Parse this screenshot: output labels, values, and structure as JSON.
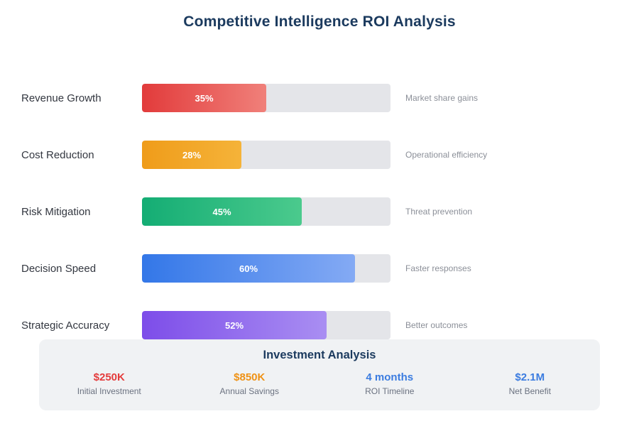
{
  "title": "Competitive Intelligence ROI Analysis",
  "chart_data": {
    "type": "bar",
    "orientation": "horizontal",
    "title": "Competitive Intelligence ROI Analysis",
    "xlim": [
      0,
      70
    ],
    "track_color": "#e4e5e9",
    "rows": [
      {
        "category": "Revenue Growth",
        "value": 35,
        "value_label": "35%",
        "annotation": "Market share gains",
        "color_from": "#e23b3b",
        "color_to": "#f0807a"
      },
      {
        "category": "Cost Reduction",
        "value": 28,
        "value_label": "28%",
        "annotation": "Operational efficiency",
        "color_from": "#ef9c1a",
        "color_to": "#f5b339"
      },
      {
        "category": "Risk Mitigation",
        "value": 45,
        "value_label": "45%",
        "annotation": "Threat prevention",
        "color_from": "#14ad74",
        "color_to": "#4bca8d"
      },
      {
        "category": "Decision Speed",
        "value": 60,
        "value_label": "60%",
        "annotation": "Faster responses",
        "color_from": "#3377e8",
        "color_to": "#84aaf4"
      },
      {
        "category": "Strategic Accuracy",
        "value": 52,
        "value_label": "52%",
        "annotation": "Better outcomes",
        "color_from": "#7d4de9",
        "color_to": "#a98ef2"
      }
    ]
  },
  "summary": {
    "title": "Investment Analysis",
    "items": [
      {
        "value": "$250K",
        "label": "Initial Investment",
        "color": "#e43c3c"
      },
      {
        "value": "$850K",
        "label": "Annual Savings",
        "color": "#ef9215"
      },
      {
        "value": "4 months",
        "label": "ROI Timeline",
        "color": "#3b7ce0"
      },
      {
        "value": "$2.1M",
        "label": "Net Benefit",
        "color": "#3b7ce0"
      }
    ]
  }
}
